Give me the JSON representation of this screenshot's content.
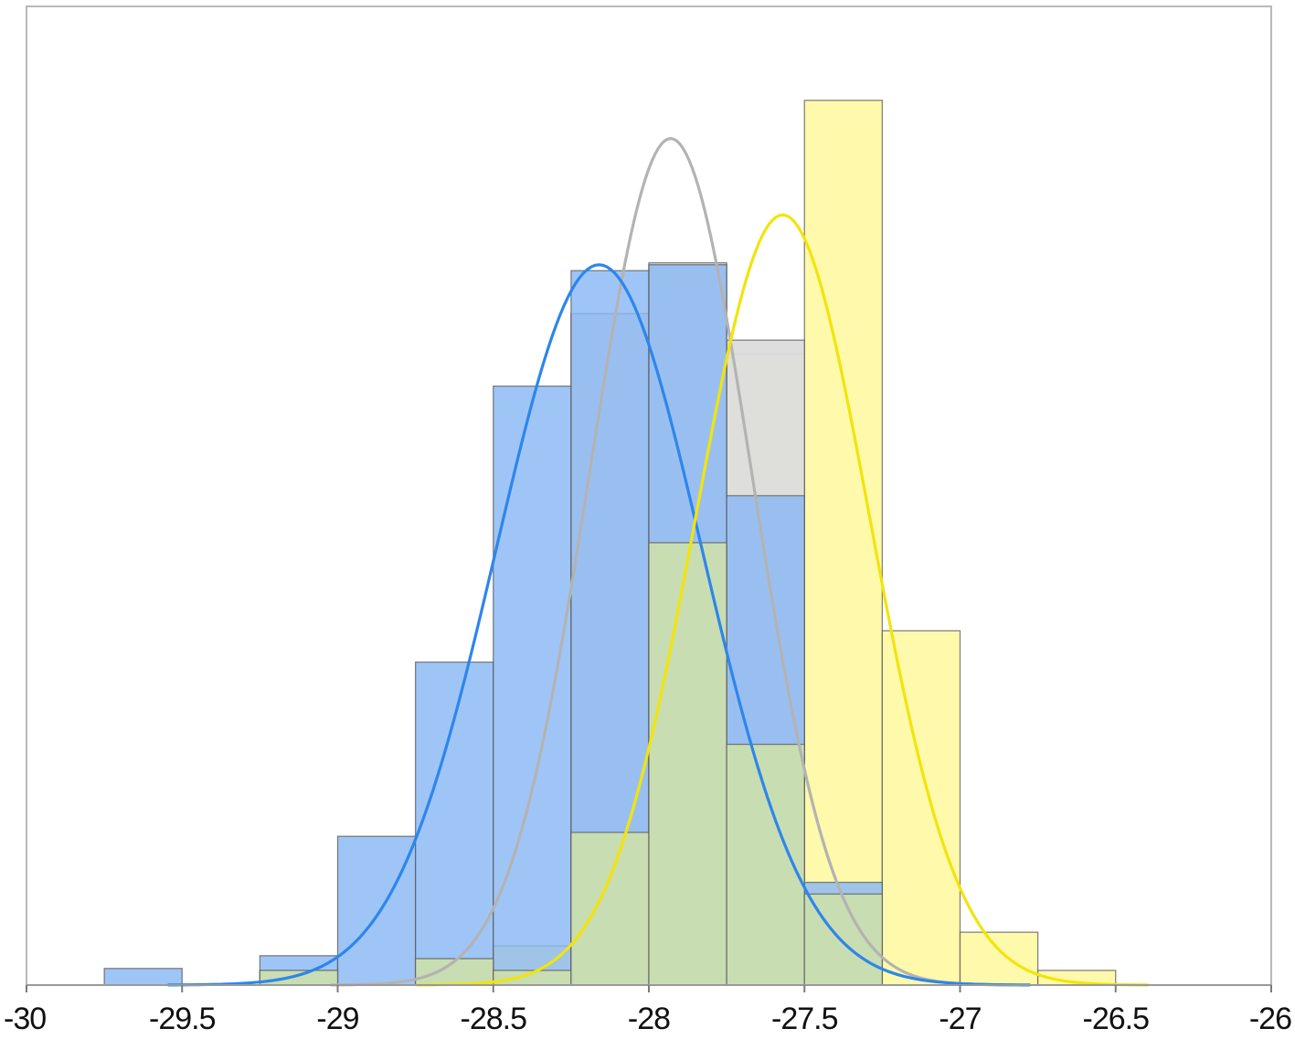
{
  "chart_data": {
    "type": "bar",
    "subtype": "overlaid-histogram-with-normal-curves",
    "title": "",
    "xlabel": "",
    "ylabel": "",
    "xlim": [
      -30,
      -26
    ],
    "ylim": [
      0,
      1
    ],
    "x_ticks": [
      "-30",
      "-29.5",
      "-29",
      "-28.5",
      "-28",
      "-27.5",
      "-27",
      "-26.5",
      "-26"
    ],
    "y_ticks": [],
    "grid": false,
    "legend": "none",
    "bin_width": 0.25,
    "series": [
      {
        "id": "blue",
        "color": "#8ab8f5",
        "curve_color": "#2d86eb",
        "bins": [
          {
            "x0": -29.75,
            "x1": -29.5,
            "value": 0.017
          },
          {
            "x0": -29.25,
            "x1": -29.0,
            "value": 0.03
          },
          {
            "x0": -29.0,
            "x1": -28.75,
            "value": 0.152
          },
          {
            "x0": -28.75,
            "x1": -28.5,
            "value": 0.33
          },
          {
            "x0": -28.5,
            "x1": -28.25,
            "value": 0.612
          },
          {
            "x0": -28.25,
            "x1": -28.0,
            "value": 0.73
          },
          {
            "x0": -28.0,
            "x1": -27.75,
            "value": 0.736
          },
          {
            "x0": -27.75,
            "x1": -27.5,
            "value": 0.5
          },
          {
            "x0": -27.5,
            "x1": -27.25,
            "value": 0.105
          }
        ],
        "curve": {
          "mean": -28.16,
          "sd": 0.33,
          "peak": 0.736
        }
      },
      {
        "id": "gray",
        "color": "#dcdcdc",
        "curve_color": "#b3b3b3",
        "bins": [
          {
            "x0": -28.25,
            "x1": -28.0,
            "value": 0.686
          },
          {
            "x0": -28.0,
            "x1": -27.75,
            "value": 0.738
          },
          {
            "x0": -27.75,
            "x1": -27.5,
            "value": 0.659
          }
        ],
        "curve": {
          "mean": -27.93,
          "sd": 0.26,
          "peak": 0.865
        }
      },
      {
        "id": "yellow",
        "color": "#fff9a6",
        "curve_color": "#f2e40c",
        "bins": [
          {
            "x0": -29.25,
            "x1": -29.0,
            "value": 0.015
          },
          {
            "x0": -28.75,
            "x1": -28.5,
            "value": 0.027
          },
          {
            "x0": -28.5,
            "x1": -28.25,
            "value": 0.04
          },
          {
            "x0": -28.25,
            "x1": -28.0,
            "value": 0.156
          },
          {
            "x0": -28.0,
            "x1": -27.75,
            "value": 0.452
          },
          {
            "x0": -27.75,
            "x1": -27.5,
            "value": 0.645
          },
          {
            "x0": -27.5,
            "x1": -27.25,
            "value": 0.904
          },
          {
            "x0": -27.25,
            "x1": -27.0,
            "value": 0.362
          },
          {
            "x0": -27.0,
            "x1": -26.75,
            "value": 0.054
          },
          {
            "x0": -26.75,
            "x1": -26.5,
            "value": 0.015
          }
        ],
        "curve": {
          "mean": -27.57,
          "sd": 0.28,
          "peak": 0.787
        }
      }
    ],
    "overlap_bins": [
      {
        "x0": -29.25,
        "x1": -29.0,
        "value": 0.015
      },
      {
        "x0": -28.75,
        "x1": -28.5,
        "value": 0.027
      },
      {
        "x0": -28.5,
        "x1": -28.25,
        "value": 0.015
      },
      {
        "x0": -28.25,
        "x1": -28.0,
        "value": 0.156
      },
      {
        "x0": -28.0,
        "x1": -27.75,
        "value": 0.452
      },
      {
        "x0": -27.75,
        "x1": -27.5,
        "value": 0.246
      },
      {
        "x0": -27.5,
        "x1": -27.25,
        "value": 0.093
      }
    ],
    "overlap_color": "#c9ddb2"
  }
}
